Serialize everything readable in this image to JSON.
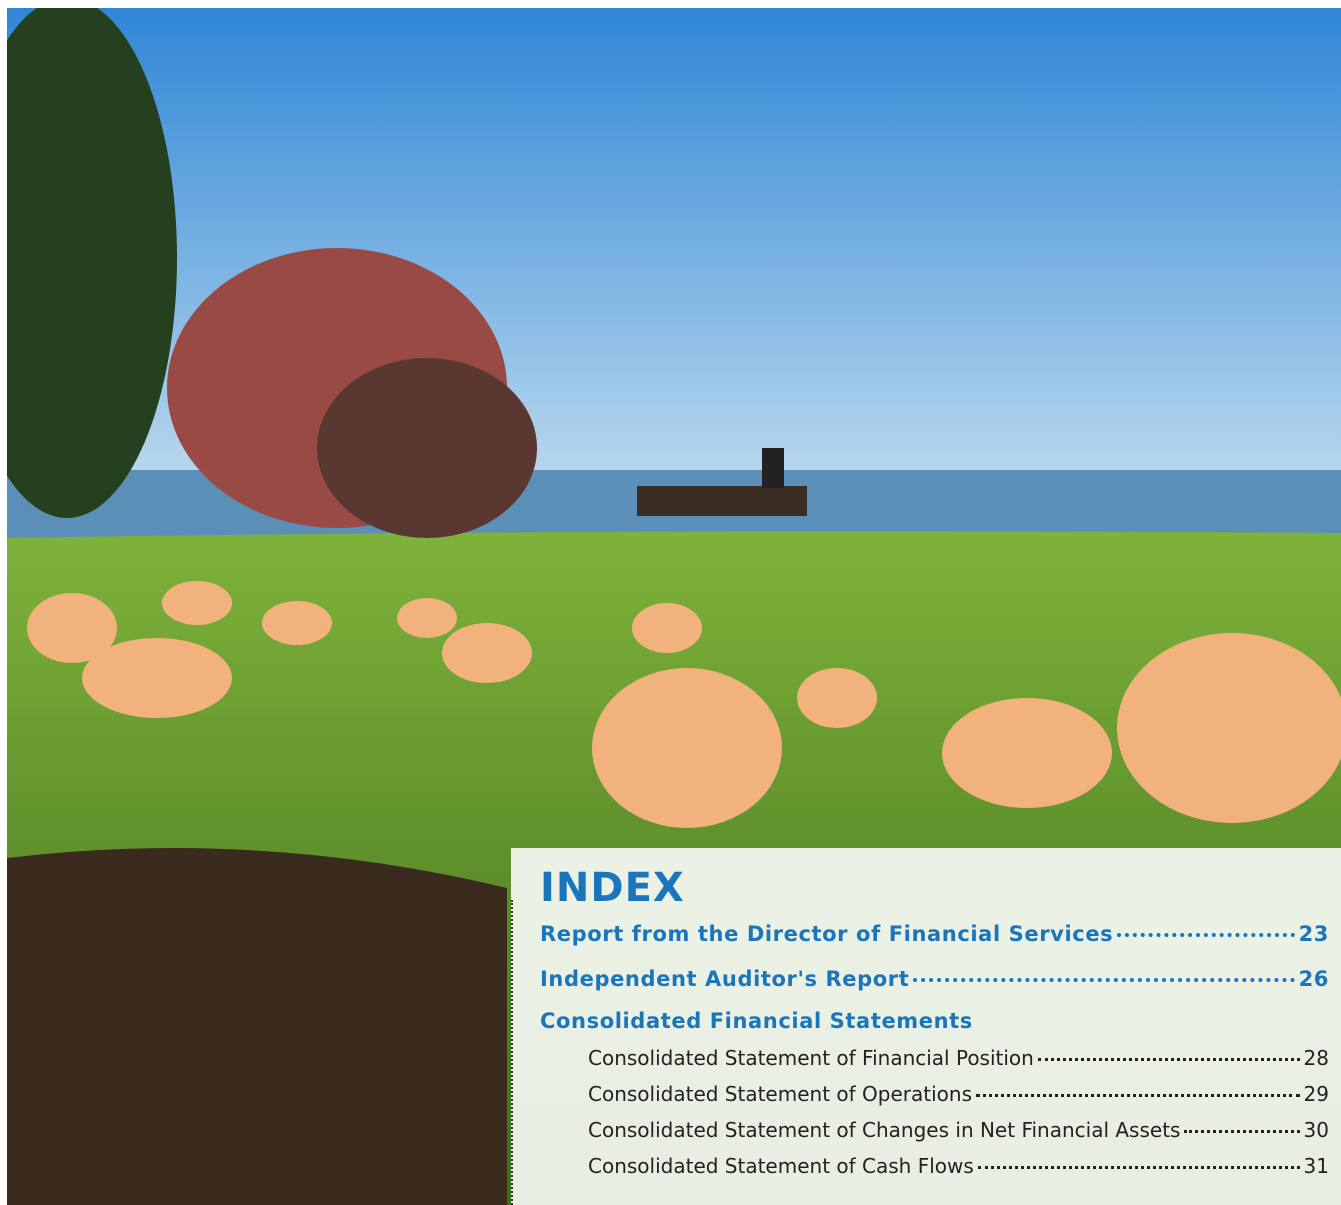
{
  "index": {
    "title": "INDEX",
    "sections": [
      {
        "title": "Report from the Director of Financial Services",
        "page": 23
      },
      {
        "title": "Independent Auditor's Report",
        "page": 26
      },
      {
        "title": "Consolidated Financial Statements",
        "items": [
          {
            "title": "Consolidated Statement of Financial Position",
            "page": 28
          },
          {
            "title": "Consolidated Statement of Operations",
            "page": 29
          },
          {
            "title": "Consolidated Statement of Changes in Net Financial Assets",
            "page": 30
          },
          {
            "title": "Consolidated Statement of Cash Flows",
            "page": 31
          }
        ]
      }
    ]
  }
}
